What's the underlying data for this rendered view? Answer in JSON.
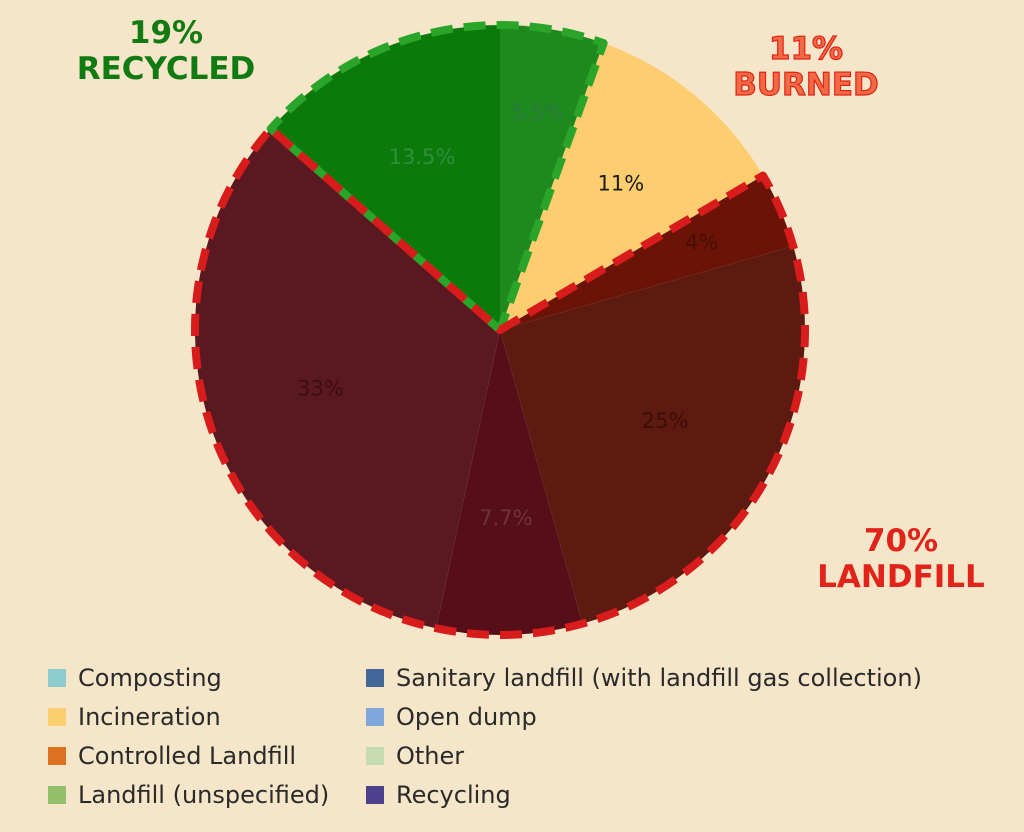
{
  "chart_data": {
    "type": "pie",
    "slices": [
      {
        "label": "Recycling",
        "value": 5.5,
        "data_label": "5.5%",
        "color": "#1e8a1e",
        "label_color": "#2a7a40"
      },
      {
        "label": "Incineration",
        "value": 11,
        "data_label": "11%",
        "color": "#fdcd6f",
        "label_color": "#1a1a1a"
      },
      {
        "label": "Open dump",
        "value": 4,
        "data_label": "4%",
        "color": "#6b1306",
        "label_color": "#4a0d05"
      },
      {
        "label": "Controlled Landfill",
        "value": 25,
        "data_label": "25%",
        "color": "#5c1a10",
        "label_color": "#3e0d08"
      },
      {
        "label": "Sanitary landfill (with landfill gas collection)",
        "value": 7.7,
        "data_label": "7.7%",
        "color": "#560f18",
        "label_color": "#6e3338"
      },
      {
        "label": "Landfill (unspecified)",
        "value": 33,
        "data_label": "33%",
        "color": "#5a1820",
        "label_color": "#3e0d12"
      },
      {
        "label": "Composting",
        "value": 13.5,
        "data_label": "13.5%",
        "color": "#0b7a0b",
        "label_color": "#2f8f3f"
      }
    ],
    "legend_position": "bottom",
    "legend": [
      {
        "label": "Composting",
        "color": "#8ccccc"
      },
      {
        "label": "Sanitary landfill (with landfill gas collection)",
        "color": "#44679a"
      },
      {
        "label": "Incineration",
        "color": "#fccf6e"
      },
      {
        "label": "Open dump",
        "color": "#7ea8dc"
      },
      {
        "label": "Controlled Landfill",
        "color": "#dc7120"
      },
      {
        "label": "Other",
        "color": "#c4dcb0"
      },
      {
        "label": "Landfill (unspecified)",
        "color": "#94c06c"
      },
      {
        "label": "Recycling",
        "color": "#4e428f"
      }
    ],
    "annotations": {
      "recycled": {
        "pct": "19%",
        "text": "RECYCLED",
        "color": "#127a12"
      },
      "burned": {
        "pct": "11%",
        "text": "BURNED",
        "color": "#e2231a"
      },
      "landfill": {
        "pct": "70%",
        "text": "LANDFILL",
        "color": "#e2231a"
      }
    },
    "group_outline": {
      "recycled": {
        "color": "#2aa52a",
        "slices": [
          "Recycling",
          "Composting"
        ]
      },
      "landfill": {
        "color": "#d81c1c",
        "slices": [
          "Open dump",
          "Controlled Landfill",
          "Sanitary landfill (with landfill gas collection)",
          "Landfill (unspecified)"
        ]
      }
    }
  }
}
